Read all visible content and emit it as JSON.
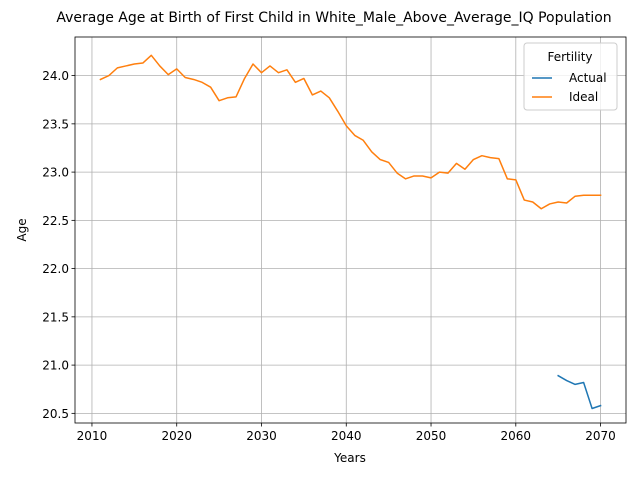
{
  "chart_data": {
    "type": "line",
    "title": "Average Age at Birth of First Child in White_Male_Above_Average_IQ Population",
    "xlabel": "Years",
    "ylabel": "Age",
    "xlim": [
      2008,
      2073
    ],
    "ylim": [
      20.4,
      24.4
    ],
    "xticks": [
      2010,
      2020,
      2030,
      2040,
      2050,
      2060,
      2070
    ],
    "yticks": [
      20.5,
      21.0,
      21.5,
      22.0,
      22.5,
      23.0,
      23.5,
      24.0
    ],
    "grid": true,
    "legend": {
      "title": "Fertility",
      "placement": "top-right"
    },
    "series": [
      {
        "name": "Actual",
        "color": "#1f77b4",
        "x": [
          2065,
          2066,
          2067,
          2068,
          2069,
          2070
        ],
        "y": [
          20.89,
          20.84,
          20.8,
          20.82,
          20.55,
          20.58
        ]
      },
      {
        "name": "Ideal",
        "color": "#ff7f0e",
        "x": [
          2011,
          2012,
          2013,
          2014,
          2015,
          2016,
          2017,
          2018,
          2019,
          2020,
          2021,
          2022,
          2023,
          2024,
          2025,
          2026,
          2027,
          2028,
          2029,
          2030,
          2031,
          2032,
          2033,
          2034,
          2035,
          2036,
          2037,
          2038,
          2039,
          2040,
          2041,
          2042,
          2043,
          2044,
          2045,
          2046,
          2047,
          2048,
          2049,
          2050,
          2051,
          2052,
          2053,
          2054,
          2055,
          2056,
          2057,
          2058,
          2059,
          2060,
          2061,
          2062,
          2063,
          2064,
          2065,
          2066,
          2067,
          2068,
          2069,
          2070
        ],
        "y": [
          23.96,
          24.0,
          24.08,
          24.1,
          24.12,
          24.13,
          24.21,
          24.1,
          24.01,
          24.07,
          23.98,
          23.96,
          23.93,
          23.88,
          23.74,
          23.77,
          23.78,
          23.97,
          24.12,
          24.03,
          24.1,
          24.03,
          24.06,
          23.93,
          23.97,
          23.8,
          23.84,
          23.77,
          23.63,
          23.48,
          23.38,
          23.33,
          23.21,
          23.13,
          23.1,
          22.99,
          22.93,
          22.96,
          22.96,
          22.94,
          23.0,
          22.99,
          23.09,
          23.03,
          23.13,
          23.17,
          23.15,
          23.14,
          22.93,
          22.92,
          22.71,
          22.69,
          22.62,
          22.67,
          22.69,
          22.68,
          22.75,
          22.76,
          22.76,
          22.76
        ]
      }
    ]
  }
}
